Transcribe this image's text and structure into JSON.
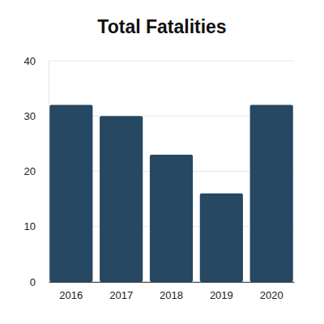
{
  "chart_data": {
    "type": "bar",
    "title": "Total Fatalities",
    "categories": [
      "2016",
      "2017",
      "2018",
      "2019",
      "2020"
    ],
    "values": [
      32,
      30,
      23,
      16,
      32
    ],
    "color": "#264863",
    "ylim": [
      0,
      40
    ],
    "yticks": [
      0,
      10,
      20,
      30,
      40
    ],
    "grid": true
  }
}
